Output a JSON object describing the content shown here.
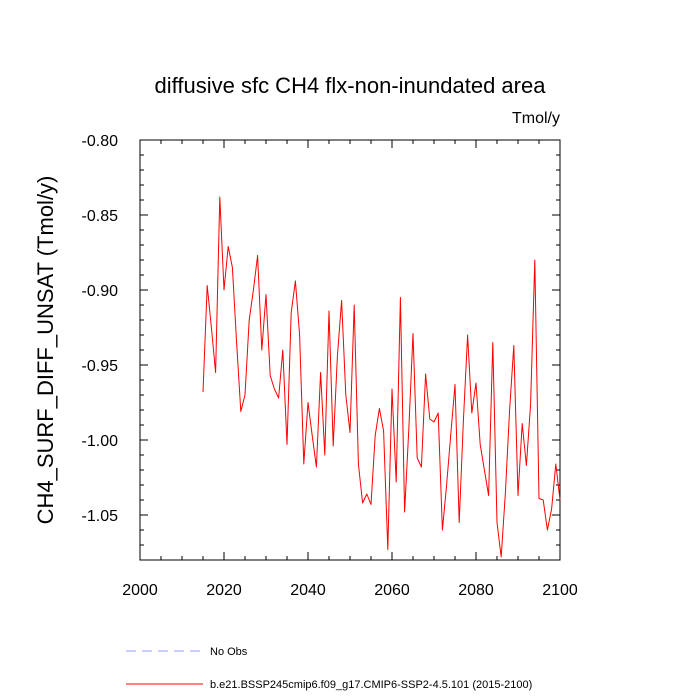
{
  "chart_data": {
    "type": "line",
    "title": "diffusive sfc CH4 flx-non-inundated area",
    "units": "Tmol/y",
    "xlabel": "",
    "ylabel": "CH4_SURF_DIFF_UNSAT  (Tmol/y)",
    "xlim": [
      2000,
      2100
    ],
    "ylim": [
      -1.08,
      -0.8
    ],
    "x_ticks": [
      2000,
      2020,
      2040,
      2060,
      2080,
      2100
    ],
    "x_tick_labels": [
      "2000",
      "2020",
      "2040",
      "2060",
      "2080",
      "2100"
    ],
    "y_ticks": [
      -0.8,
      -0.85,
      -0.9,
      -0.95,
      -1.0,
      -1.05
    ],
    "y_tick_labels": [
      "-0.80",
      "-0.85",
      "-0.90",
      "-0.95",
      "-1.00",
      "-1.05"
    ],
    "grid": false,
    "legend_position": "bottom",
    "series": [
      {
        "name": "b.e21.BSSP245cmip6.f09_g17.CMIP6-SSP2-4.5.101 (2015-2100)",
        "color": "#ff0000",
        "style": "solid",
        "x": [
          2015,
          2016,
          2017,
          2018,
          2019,
          2020,
          2021,
          2022,
          2023,
          2024,
          2025,
          2026,
          2027,
          2028,
          2029,
          2030,
          2031,
          2032,
          2033,
          2034,
          2035,
          2036,
          2037,
          2038,
          2039,
          2040,
          2041,
          2042,
          2043,
          2044,
          2045,
          2046,
          2047,
          2048,
          2049,
          2050,
          2051,
          2052,
          2053,
          2054,
          2055,
          2056,
          2057,
          2058,
          2059,
          2060,
          2061,
          2062,
          2063,
          2064,
          2065,
          2066,
          2067,
          2068,
          2069,
          2070,
          2071,
          2072,
          2073,
          2074,
          2075,
          2076,
          2077,
          2078,
          2079,
          2080,
          2081,
          2082,
          2083,
          2084,
          2085,
          2086,
          2087,
          2088,
          2089,
          2090,
          2091,
          2092,
          2093,
          2094,
          2095,
          2096,
          2097,
          2098,
          2099,
          2100
        ],
        "values": [
          -0.968,
          -0.897,
          -0.925,
          -0.955,
          -0.838,
          -0.9,
          -0.871,
          -0.885,
          -0.935,
          -0.981,
          -0.97,
          -0.92,
          -0.9,
          -0.877,
          -0.94,
          -0.903,
          -0.957,
          -0.966,
          -0.972,
          -0.94,
          -1.003,
          -0.915,
          -0.894,
          -0.93,
          -1.016,
          -0.975,
          -0.997,
          -1.018,
          -0.955,
          -1.01,
          -0.914,
          -1.004,
          -0.944,
          -0.907,
          -0.97,
          -0.995,
          -0.91,
          -1.016,
          -1.042,
          -1.036,
          -1.043,
          -0.997,
          -0.979,
          -0.994,
          -1.073,
          -0.966,
          -1.028,
          -0.905,
          -1.048,
          -0.993,
          -0.929,
          -1.012,
          -1.018,
          -0.956,
          -0.986,
          -0.988,
          -0.982,
          -1.06,
          -1.03,
          -0.996,
          -0.963,
          -1.055,
          -0.987,
          -0.93,
          -0.982,
          -0.962,
          -1.003,
          -1.02,
          -1.037,
          -0.935,
          -1.055,
          -1.078,
          -1.035,
          -0.98,
          -0.937,
          -1.037,
          -0.989,
          -1.017,
          -0.976,
          -0.88,
          -1.039,
          -1.04,
          -1.06,
          -1.046,
          -1.016,
          -1.04
        ]
      },
      {
        "name": "No Obs",
        "color": "#9999ff",
        "style": "dashed",
        "x": [],
        "values": []
      }
    ]
  }
}
